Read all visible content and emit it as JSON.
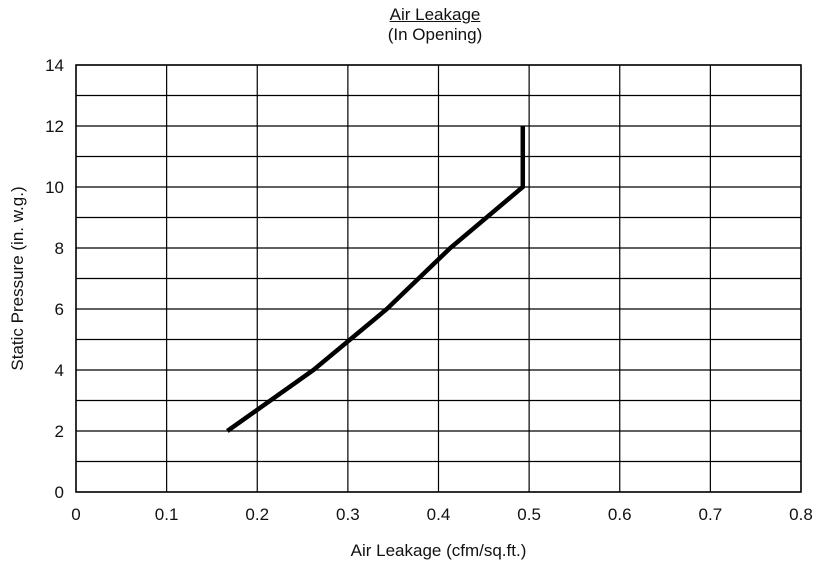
{
  "chart_data": {
    "type": "line",
    "title": "Air Leakage",
    "subtitle": "(In Opening)",
    "xlabel": "Air Leakage (cfm/sq.ft.)",
    "ylabel": "Static Pressure (in. w.g.)",
    "xlim": [
      0,
      0.8
    ],
    "ylim": [
      0,
      14
    ],
    "xticks": [
      0,
      0.1,
      0.2,
      0.3,
      0.4,
      0.5,
      0.6,
      0.7,
      0.8
    ],
    "xtick_labels": [
      "0",
      "0.1",
      "0.2",
      "0.3",
      "0.4",
      "0.5",
      "0.6",
      "0.7",
      "0.8"
    ],
    "yticks": [
      0,
      2,
      4,
      6,
      8,
      10,
      12,
      14
    ],
    "ytick_labels": [
      "0",
      "2",
      "4",
      "6",
      "8",
      "10",
      "12",
      "14"
    ],
    "grid": true,
    "y_minor_grid_step": 1,
    "line_color": "#000000",
    "series": [
      {
        "x": [
          0.167,
          0.262,
          0.343,
          0.413,
          0.493,
          0.493
        ],
        "y": [
          2,
          4,
          6,
          8,
          10,
          12
        ]
      }
    ]
  }
}
